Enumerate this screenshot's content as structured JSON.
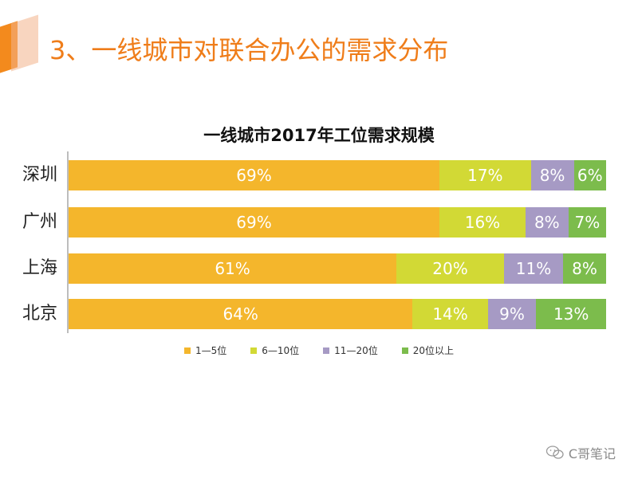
{
  "slide": {
    "title": "3、一线城市对联合办公的需求分布"
  },
  "watermark": {
    "text": "C哥笔记"
  },
  "colors": {
    "accent": "#ef7d1a",
    "seg1": "#f4b62c",
    "seg2": "#d2d935",
    "seg3": "#a69ac4",
    "seg4": "#7cbc4c"
  },
  "chart_data": {
    "type": "bar",
    "orientation": "horizontal",
    "stacked": true,
    "normalized": true,
    "title": "一线城市2017年工位需求规模",
    "categories": [
      "深圳",
      "广州",
      "上海",
      "北京"
    ],
    "series": [
      {
        "name": "1—5位",
        "color": "#f4b62c",
        "values": [
          69,
          69,
          61,
          64
        ],
        "labels": [
          "69%",
          "69%",
          "61%",
          "64%"
        ]
      },
      {
        "name": "6—10位",
        "color": "#d2d935",
        "values": [
          17,
          16,
          20,
          14
        ],
        "labels": [
          "17%",
          "16%",
          "20%",
          "14%"
        ]
      },
      {
        "name": "11—20位",
        "color": "#a69ac4",
        "values": [
          8,
          8,
          11,
          9
        ],
        "labels": [
          "8%",
          "8%",
          "11%",
          "9%"
        ]
      },
      {
        "name": "20位以上",
        "color": "#7cbc4c",
        "values": [
          6,
          7,
          8,
          13
        ],
        "labels": [
          "6%",
          "7%",
          "8%",
          "13%"
        ]
      }
    ],
    "legend_position": "bottom",
    "grid": false
  }
}
